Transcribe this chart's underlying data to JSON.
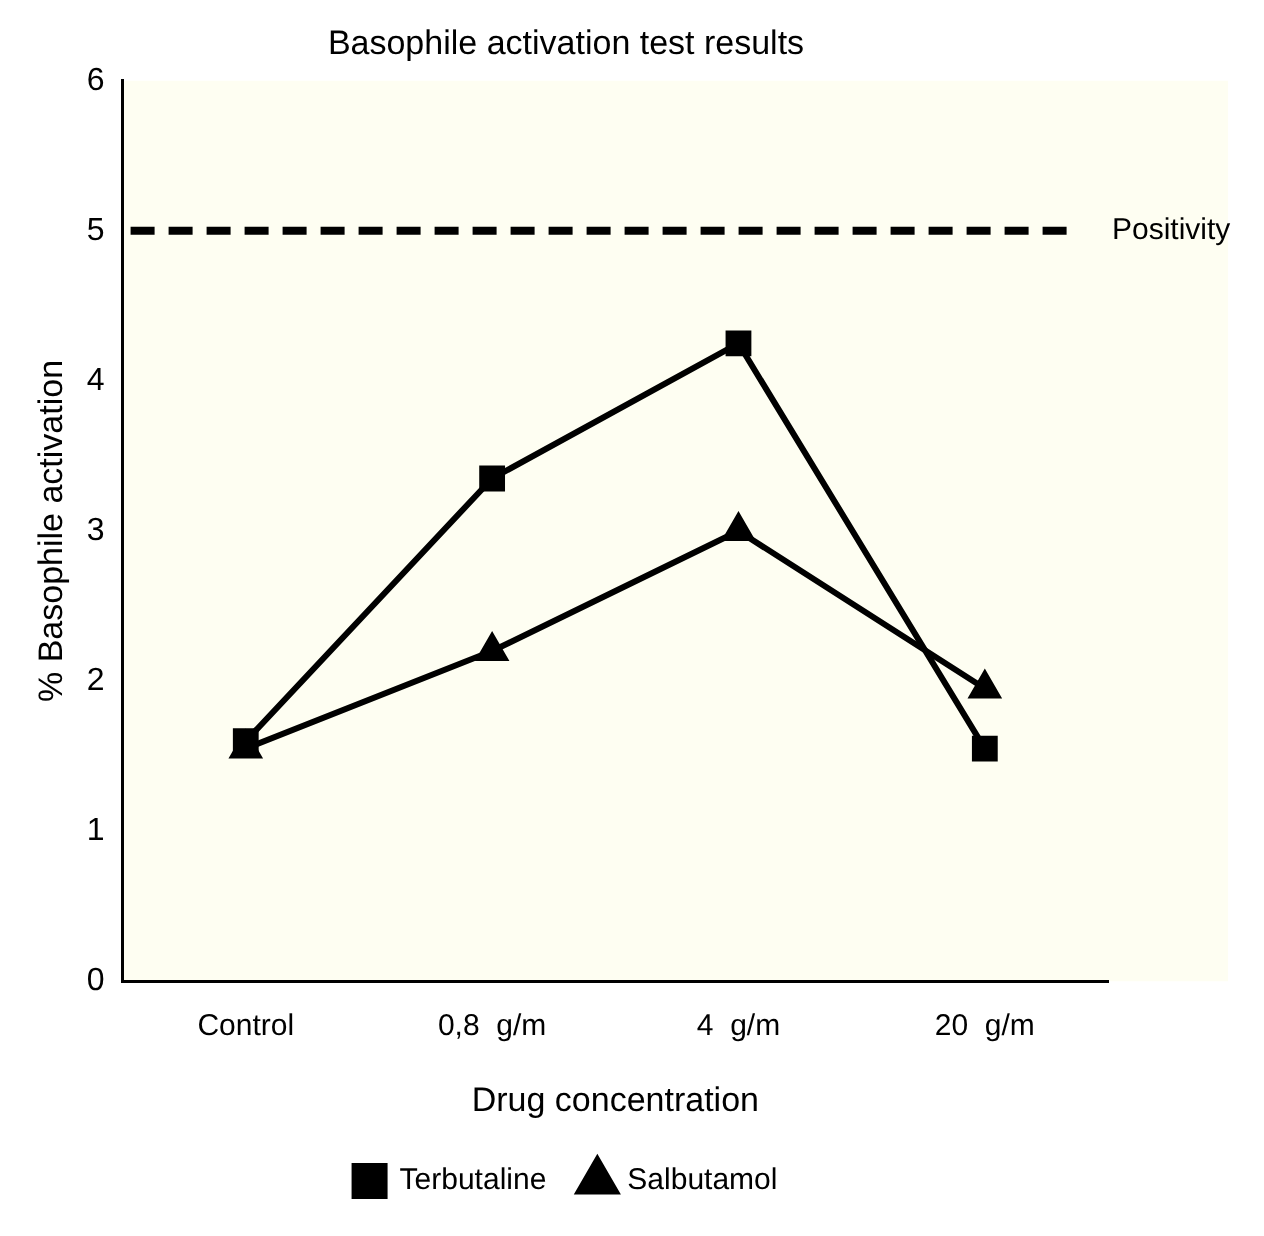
{
  "chart_data": {
    "type": "line",
    "title": "Basophile activation test results",
    "xlabel": "Drug concentration",
    "ylabel": "% Basophile activation",
    "categories": [
      "Control",
      "0,8  g/m",
      "4  g/m",
      "20  g/m"
    ],
    "series": [
      {
        "name": "Salbutamol",
        "color": "#000000",
        "marker": "triangle",
        "values": [
          1.55,
          2.2,
          3.0,
          1.95
        ]
      },
      {
        "name": "Terbutaline",
        "color": "#000000",
        "marker": "square",
        "values": [
          1.6,
          3.35,
          4.25,
          1.55
        ]
      }
    ],
    "ylim": [
      0,
      6
    ],
    "yticks": [
      0,
      1,
      2,
      3,
      4,
      5,
      6
    ],
    "grid": false,
    "legend": "bottom",
    "line_style": "solid",
    "ref_lines": [
      {
        "axis": "y",
        "value": 5,
        "label": "Positivity",
        "color": "#000000",
        "line_style": "dashed"
      }
    ]
  }
}
